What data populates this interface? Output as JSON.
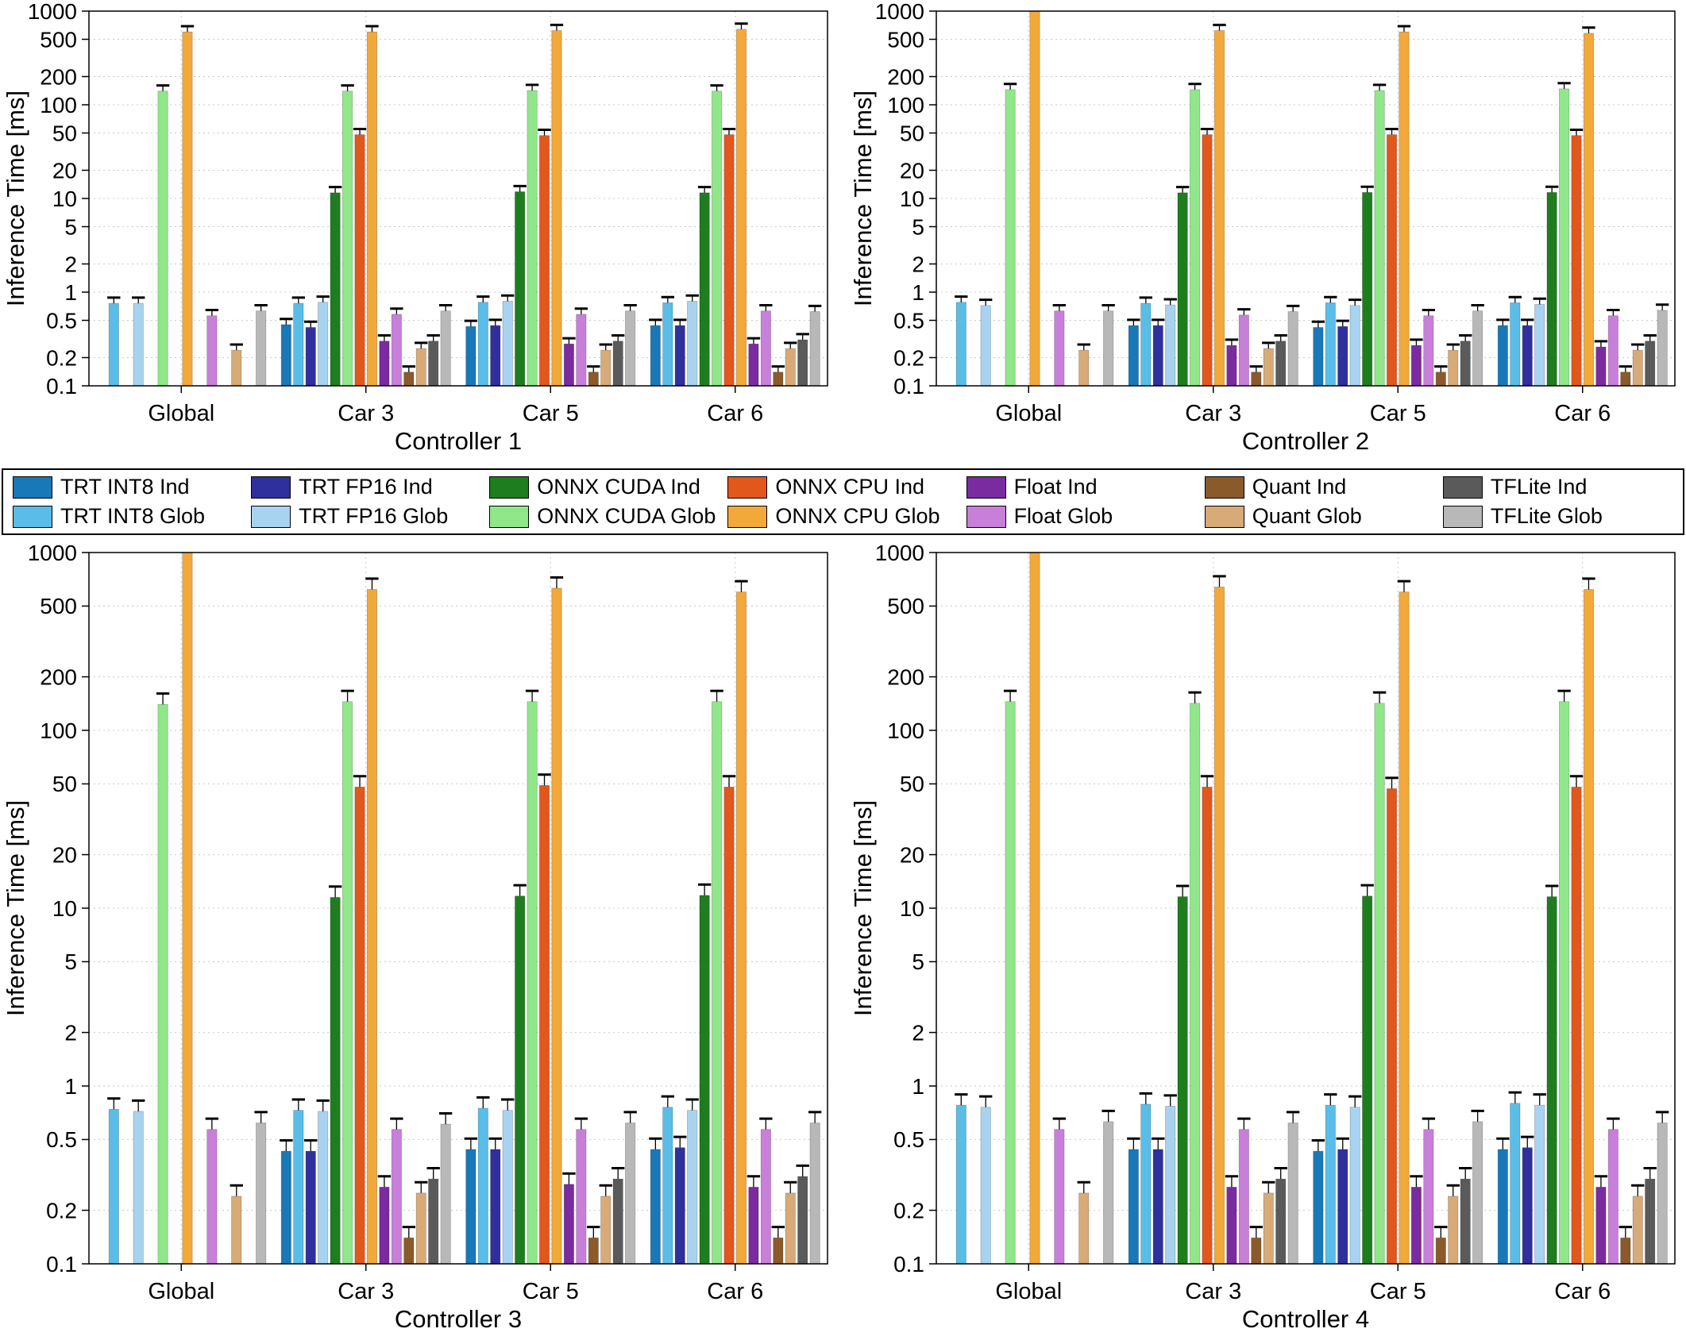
{
  "legend": {
    "items": [
      {
        "label": "TRT INT8 Ind",
        "color": "#1878b8"
      },
      {
        "label": "TRT INT8 Glob",
        "color": "#59bde8"
      },
      {
        "label": "TRT FP16 Ind",
        "color": "#2f2f9d"
      },
      {
        "label": "TRT FP16 Glob",
        "color": "#a8d3f0"
      },
      {
        "label": "ONNX CUDA Ind",
        "color": "#1e7d1e"
      },
      {
        "label": "ONNX CUDA Glob",
        "color": "#90e78a"
      },
      {
        "label": "ONNX CPU Ind",
        "color": "#e1571c"
      },
      {
        "label": "ONNX CPU Glob",
        "color": "#f3a83a"
      },
      {
        "label": "Float Ind",
        "color": "#7a2ba0"
      },
      {
        "label": "Float Glob",
        "color": "#c87fd9"
      },
      {
        "label": "Quant Ind",
        "color": "#8a5a2a"
      },
      {
        "label": "Quant Glob",
        "color": "#d7aa78"
      },
      {
        "label": "TFLite Ind",
        "color": "#5a5a5a"
      },
      {
        "label": "TFLite Glob",
        "color": "#b8b8b8"
      }
    ]
  },
  "chart_data": [
    {
      "type": "bar",
      "xlabel": "Controller 1",
      "ylabel": "Inference Time [ms]",
      "categories": [
        "Global",
        "Car 3",
        "Car 5",
        "Car 6"
      ],
      "yscale": "log",
      "ylim": [
        0.1,
        1000
      ],
      "yticks": [
        "0.1",
        "0.2",
        "0.5",
        "1",
        "2",
        "5",
        "10",
        "20",
        "50",
        "100",
        "200",
        "500",
        "1000"
      ],
      "series": [
        {
          "name": "TRT INT8 Ind",
          "values": [
            null,
            0.45,
            0.43,
            0.44
          ]
        },
        {
          "name": "TRT INT8 Glob",
          "values": [
            0.76,
            0.76,
            0.78,
            0.77
          ]
        },
        {
          "name": "TRT FP16 Ind",
          "values": [
            null,
            0.42,
            0.44,
            0.44
          ]
        },
        {
          "name": "TRT FP16 Glob",
          "values": [
            0.76,
            0.78,
            0.8,
            0.8
          ]
        },
        {
          "name": "ONNX CUDA Ind",
          "values": [
            null,
            11.5,
            11.8,
            11.5
          ]
        },
        {
          "name": "ONNX CUDA Glob",
          "values": [
            140,
            140,
            142,
            140
          ]
        },
        {
          "name": "ONNX CPU Ind",
          "values": [
            null,
            48,
            47,
            48
          ]
        },
        {
          "name": "ONNX CPU Glob",
          "values": [
            600,
            600,
            620,
            640
          ]
        },
        {
          "name": "Float Ind",
          "values": [
            null,
            0.3,
            0.28,
            0.28
          ]
        },
        {
          "name": "Float Glob",
          "values": [
            0.56,
            0.58,
            0.58,
            0.63
          ]
        },
        {
          "name": "Quant Ind",
          "values": [
            null,
            0.14,
            0.14,
            0.14
          ]
        },
        {
          "name": "Quant Glob",
          "values": [
            0.24,
            0.25,
            0.24,
            0.25
          ]
        },
        {
          "name": "TFLite Ind",
          "values": [
            null,
            0.3,
            0.3,
            0.31
          ]
        },
        {
          "name": "TFLite Glob",
          "values": [
            0.63,
            0.63,
            0.63,
            0.62
          ]
        }
      ]
    },
    {
      "type": "bar",
      "xlabel": "Controller 2",
      "ylabel": "Inference Time [ms]",
      "categories": [
        "Global",
        "Car 3",
        "Car 5",
        "Car 6"
      ],
      "yscale": "log",
      "ylim": [
        0.1,
        1000
      ],
      "yticks": [
        "0.1",
        "0.2",
        "0.5",
        "1",
        "2",
        "5",
        "10",
        "20",
        "50",
        "100",
        "200",
        "500",
        "1000"
      ],
      "series": [
        {
          "name": "TRT INT8 Ind",
          "values": [
            null,
            0.44,
            0.42,
            0.44
          ]
        },
        {
          "name": "TRT INT8 Glob",
          "values": [
            0.78,
            0.76,
            0.77,
            0.77
          ]
        },
        {
          "name": "TRT FP16 Ind",
          "values": [
            null,
            0.44,
            0.43,
            0.44
          ]
        },
        {
          "name": "TRT FP16 Glob",
          "values": [
            0.72,
            0.73,
            0.72,
            0.74
          ]
        },
        {
          "name": "ONNX CUDA Ind",
          "values": [
            null,
            11.5,
            11.6,
            11.6
          ]
        },
        {
          "name": "ONNX CUDA Glob",
          "values": [
            145,
            145,
            142,
            148
          ]
        },
        {
          "name": "ONNX CPU Ind",
          "values": [
            null,
            48,
            48,
            47
          ]
        },
        {
          "name": "ONNX CPU Glob",
          "values": [
            1000,
            620,
            600,
            580
          ]
        },
        {
          "name": "Float Ind",
          "values": [
            null,
            0.27,
            0.27,
            0.26
          ]
        },
        {
          "name": "Float Glob",
          "values": [
            0.63,
            0.57,
            0.56,
            0.56
          ]
        },
        {
          "name": "Quant Ind",
          "values": [
            null,
            0.14,
            0.14,
            0.14
          ]
        },
        {
          "name": "Quant Glob",
          "values": [
            0.24,
            0.25,
            0.24,
            0.24
          ]
        },
        {
          "name": "TFLite Ind",
          "values": [
            null,
            0.3,
            0.3,
            0.3
          ]
        },
        {
          "name": "TFLite Glob",
          "values": [
            0.63,
            0.62,
            0.63,
            0.64
          ]
        }
      ]
    },
    {
      "type": "bar",
      "xlabel": "Controller 3",
      "ylabel": "Inference Time [ms]",
      "categories": [
        "Global",
        "Car 3",
        "Car 5",
        "Car 6"
      ],
      "yscale": "log",
      "ylim": [
        0.1,
        1000
      ],
      "yticks": [
        "0.1",
        "0.2",
        "0.5",
        "1",
        "2",
        "5",
        "10",
        "20",
        "50",
        "100",
        "200",
        "500",
        "1000"
      ],
      "series": [
        {
          "name": "TRT INT8 Ind",
          "values": [
            null,
            0.43,
            0.44,
            0.44
          ]
        },
        {
          "name": "TRT INT8 Glob",
          "values": [
            0.74,
            0.73,
            0.75,
            0.76
          ]
        },
        {
          "name": "TRT FP16 Ind",
          "values": [
            null,
            0.43,
            0.44,
            0.45
          ]
        },
        {
          "name": "TRT FP16 Glob",
          "values": [
            0.72,
            0.72,
            0.73,
            0.73
          ]
        },
        {
          "name": "ONNX CUDA Ind",
          "values": [
            null,
            11.5,
            11.7,
            11.8
          ]
        },
        {
          "name": "ONNX CUDA Glob",
          "values": [
            140,
            145,
            145,
            145
          ]
        },
        {
          "name": "ONNX CPU Ind",
          "values": [
            null,
            48,
            49,
            48
          ]
        },
        {
          "name": "ONNX CPU Glob",
          "values": [
            1000,
            620,
            630,
            600
          ]
        },
        {
          "name": "Float Ind",
          "values": [
            null,
            0.27,
            0.28,
            0.27
          ]
        },
        {
          "name": "Float Glob",
          "values": [
            0.57,
            0.57,
            0.57,
            0.57
          ]
        },
        {
          "name": "Quant Ind",
          "values": [
            null,
            0.14,
            0.14,
            0.14
          ]
        },
        {
          "name": "Quant Glob",
          "values": [
            0.24,
            0.25,
            0.24,
            0.25
          ]
        },
        {
          "name": "TFLite Ind",
          "values": [
            null,
            0.3,
            0.3,
            0.31
          ]
        },
        {
          "name": "TFLite Glob",
          "values": [
            0.62,
            0.61,
            0.62,
            0.62
          ]
        }
      ]
    },
    {
      "type": "bar",
      "xlabel": "Controller 4",
      "ylabel": "Inference Time [ms]",
      "categories": [
        "Global",
        "Car 3",
        "Car 5",
        "Car 6"
      ],
      "yscale": "log",
      "ylim": [
        0.1,
        1000
      ],
      "yticks": [
        "0.1",
        "0.2",
        "0.5",
        "1",
        "2",
        "5",
        "10",
        "20",
        "50",
        "100",
        "200",
        "500",
        "1000"
      ],
      "series": [
        {
          "name": "TRT INT8 Ind",
          "values": [
            null,
            0.44,
            0.43,
            0.44
          ]
        },
        {
          "name": "TRT INT8 Glob",
          "values": [
            0.78,
            0.79,
            0.78,
            0.8
          ]
        },
        {
          "name": "TRT FP16 Ind",
          "values": [
            null,
            0.44,
            0.44,
            0.45
          ]
        },
        {
          "name": "TRT FP16 Glob",
          "values": [
            0.76,
            0.77,
            0.76,
            0.78
          ]
        },
        {
          "name": "ONNX CUDA Ind",
          "values": [
            null,
            11.6,
            11.7,
            11.6
          ]
        },
        {
          "name": "ONNX CUDA Glob",
          "values": [
            145,
            142,
            142,
            145
          ]
        },
        {
          "name": "ONNX CPU Ind",
          "values": [
            null,
            48,
            47,
            48
          ]
        },
        {
          "name": "ONNX CPU Glob",
          "values": [
            1000,
            640,
            600,
            620
          ]
        },
        {
          "name": "Float Ind",
          "values": [
            null,
            0.27,
            0.27,
            0.27
          ]
        },
        {
          "name": "Float Glob",
          "values": [
            0.57,
            0.57,
            0.57,
            0.57
          ]
        },
        {
          "name": "Quant Ind",
          "values": [
            null,
            0.14,
            0.14,
            0.14
          ]
        },
        {
          "name": "Quant Glob",
          "values": [
            0.25,
            0.25,
            0.24,
            0.24
          ]
        },
        {
          "name": "TFLite Ind",
          "values": [
            null,
            0.3,
            0.3,
            0.3
          ]
        },
        {
          "name": "TFLite Glob",
          "values": [
            0.63,
            0.62,
            0.63,
            0.62
          ]
        }
      ]
    }
  ]
}
